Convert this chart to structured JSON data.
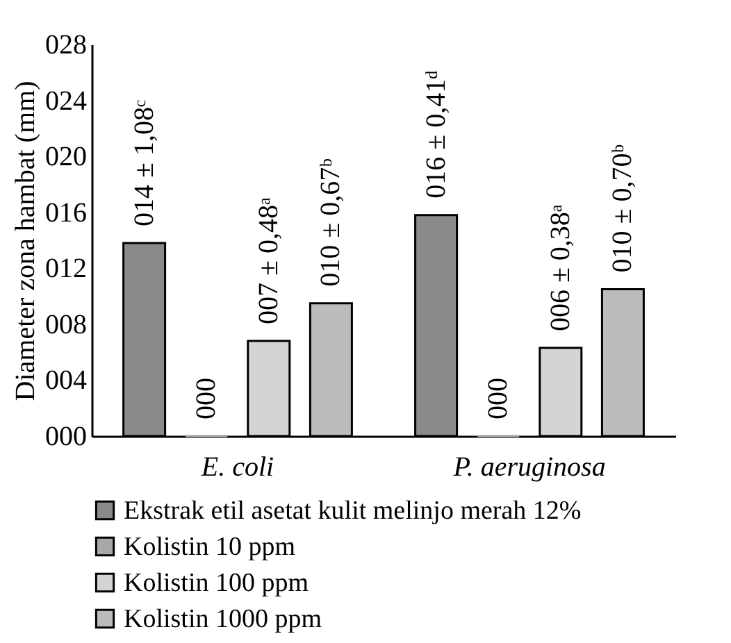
{
  "chart_data": {
    "type": "bar",
    "ylabel": "Diameter zona hambat (mm)",
    "categories": [
      "E. coli",
      "P. aeruginosa"
    ],
    "series": [
      {
        "name": "Ekstrak etil asetat kulit melinjo merah 12%",
        "color": "#8a8a8a",
        "values": [
          13.8,
          15.8
        ],
        "value_labels": [
          "014 ± 1,08ᶜ",
          "016 ± 0,41ᵈ"
        ]
      },
      {
        "name": "Kolistin 10 ppm",
        "color": "#a8a8a8",
        "values": [
          0,
          0
        ],
        "value_labels": [
          "000",
          "000"
        ]
      },
      {
        "name": "Kolistin 100 ppm",
        "color": "#d4d4d4",
        "values": [
          6.8,
          6.3
        ],
        "value_labels": [
          "007 ± 0,48ᵃ",
          "006 ± 0,38ᵃ"
        ]
      },
      {
        "name": "Kolistin 1000 ppm",
        "color": "#bcbcbc",
        "values": [
          9.5,
          10.5
        ],
        "value_labels": [
          "010 ± 0,67ᵇ",
          "010 ± 0,70ᵇ"
        ]
      }
    ],
    "ylim": [
      0,
      28
    ],
    "yticks": [
      {
        "value": 0,
        "label": "000"
      },
      {
        "value": 4,
        "label": "004"
      },
      {
        "value": 8,
        "label": "008"
      },
      {
        "value": 12,
        "label": "012"
      },
      {
        "value": 16,
        "label": "016"
      },
      {
        "value": 20,
        "label": "020"
      },
      {
        "value": 24,
        "label": "024"
      },
      {
        "value": 28,
        "label": "028"
      }
    ],
    "grid": false,
    "legend": "bottom"
  }
}
